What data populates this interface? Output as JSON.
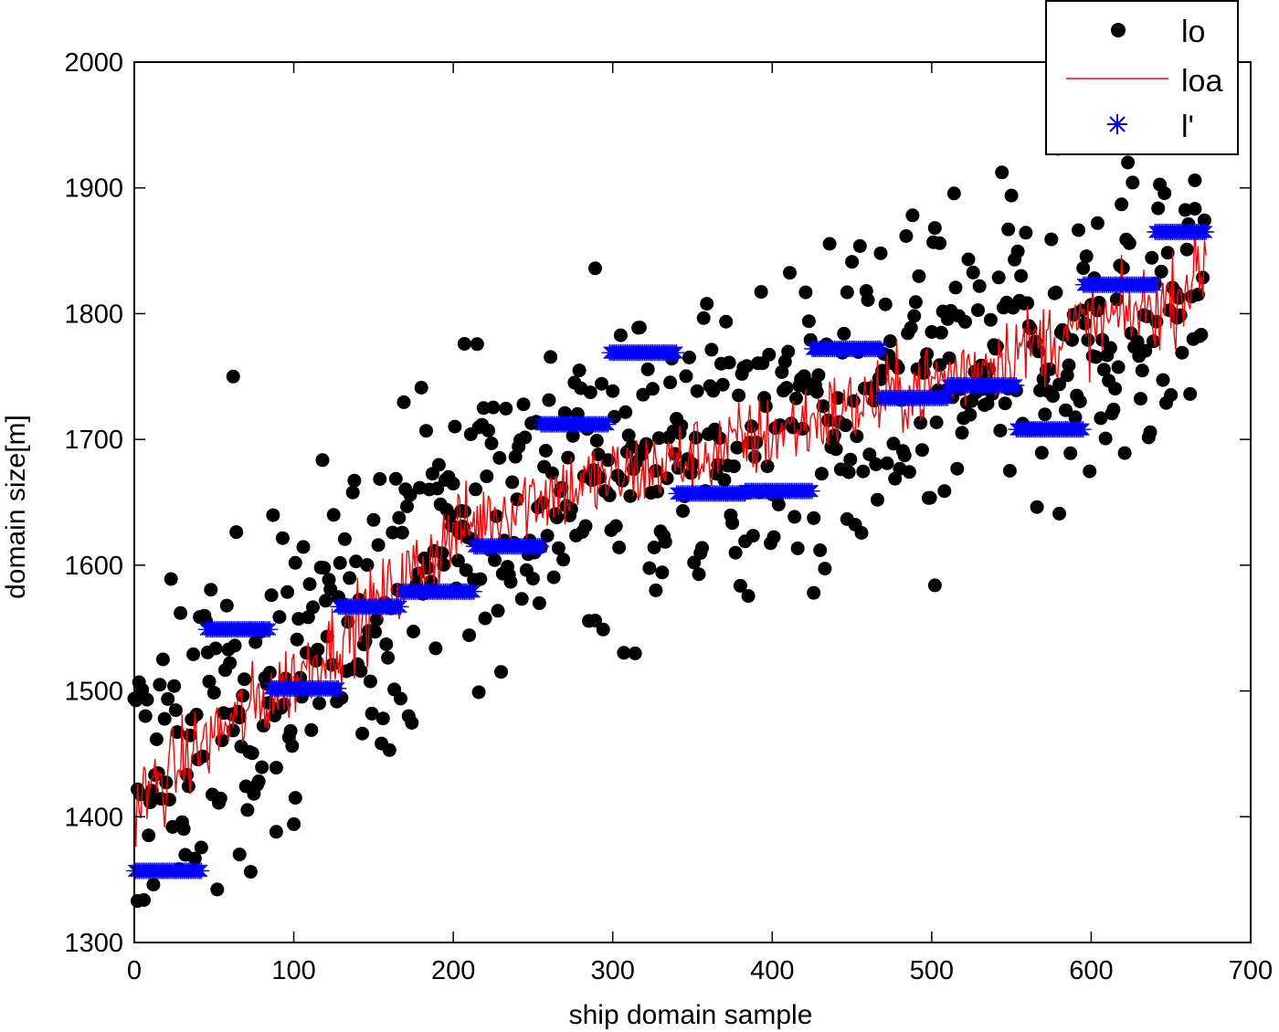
{
  "chart_data": {
    "type": "scatter",
    "title": "",
    "xlabel": "ship domain sample",
    "ylabel": "domain size[m]",
    "xlim": [
      0,
      700
    ],
    "ylim": [
      1300,
      2000
    ],
    "xticks": [
      0,
      100,
      200,
      300,
      400,
      500,
      600,
      700
    ],
    "yticks": [
      1300,
      1400,
      1500,
      1600,
      1700,
      1800,
      1900,
      2000
    ],
    "grid": false,
    "legend_position": "top-right (outside overlap)",
    "n_samples": 672,
    "series": [
      {
        "name": "lo",
        "kind": "scatter",
        "marker": "filled-circle",
        "color": "#000000",
        "description": "Observed domain sizes, ~672 points trending from ~1420 at x=0 to ~1830 at x=672 with spread of about ±100",
        "trend": {
          "x": [
            0,
            100,
            200,
            300,
            400,
            500,
            600,
            672
          ],
          "y": [
            1430,
            1520,
            1640,
            1680,
            1710,
            1740,
            1790,
            1830
          ]
        },
        "spread": 110,
        "outliers": [
          {
            "x": 2,
            "y": 1333
          },
          {
            "x": 62,
            "y": 1750
          },
          {
            "x": 207,
            "y": 1776
          },
          {
            "x": 216,
            "y": 1499
          },
          {
            "x": 665,
            "y": 1906
          },
          {
            "x": 66,
            "y": 1370
          },
          {
            "x": 89,
            "y": 1388
          },
          {
            "x": 101,
            "y": 1415
          },
          {
            "x": 289,
            "y": 1556
          },
          {
            "x": 327,
            "y": 1580
          },
          {
            "x": 426,
            "y": 1578
          },
          {
            "x": 502,
            "y": 1584
          },
          {
            "x": 580,
            "y": 1641
          },
          {
            "x": 468,
            "y": 1848
          },
          {
            "x": 505,
            "y": 1856
          },
          {
            "x": 548,
            "y": 1867
          },
          {
            "x": 604,
            "y": 1872
          },
          {
            "x": 447,
            "y": 1817
          }
        ]
      },
      {
        "name": "loa",
        "kind": "line",
        "color": "#ff0000",
        "description": "Noisy moving-average line",
        "trend": {
          "x": [
            0,
            50,
            100,
            150,
            200,
            250,
            300,
            350,
            400,
            450,
            500,
            550,
            600,
            650,
            672
          ],
          "y": [
            1410,
            1465,
            1510,
            1565,
            1625,
            1655,
            1670,
            1685,
            1705,
            1725,
            1745,
            1770,
            1790,
            1810,
            1840
          ]
        },
        "noise_amplitude": 28
      },
      {
        "name": "l'",
        "kind": "step-markers",
        "marker": "asterisk",
        "color": "#0000ff",
        "segments": [
          {
            "x0": 0,
            "x1": 42,
            "y": 1357
          },
          {
            "x0": 45,
            "x1": 85,
            "y": 1549
          },
          {
            "x0": 85,
            "x1": 128,
            "y": 1502
          },
          {
            "x0": 128,
            "x1": 167,
            "y": 1567
          },
          {
            "x0": 168,
            "x1": 213,
            "y": 1579
          },
          {
            "x0": 213,
            "x1": 255,
            "y": 1615
          },
          {
            "x0": 255,
            "x1": 297,
            "y": 1712
          },
          {
            "x0": 298,
            "x1": 340,
            "y": 1769
          },
          {
            "x0": 340,
            "x1": 383,
            "y": 1657
          },
          {
            "x0": 383,
            "x1": 425,
            "y": 1659
          },
          {
            "x0": 425,
            "x1": 468,
            "y": 1772
          },
          {
            "x0": 468,
            "x1": 510,
            "y": 1733
          },
          {
            "x0": 510,
            "x1": 553,
            "y": 1743
          },
          {
            "x0": 553,
            "x1": 595,
            "y": 1708
          },
          {
            "x0": 595,
            "x1": 640,
            "y": 1823
          },
          {
            "x0": 640,
            "x1": 672,
            "y": 1865
          }
        ]
      }
    ]
  },
  "legend": {
    "items": [
      {
        "label": "lo",
        "symbol": "dot",
        "color": "#000000"
      },
      {
        "label": "loa",
        "symbol": "line",
        "color": "#ff0000"
      },
      {
        "label": "l'",
        "symbol": "asterisk",
        "color": "#0000ff"
      }
    ]
  },
  "axes": {
    "xlabel": "ship domain sample",
    "ylabel": "domain size[m]",
    "xtick_labels": [
      "0",
      "100",
      "200",
      "300",
      "400",
      "500",
      "600",
      "700"
    ],
    "ytick_labels": [
      "1300",
      "1400",
      "1500",
      "1600",
      "1700",
      "1800",
      "1900",
      "2000"
    ]
  }
}
